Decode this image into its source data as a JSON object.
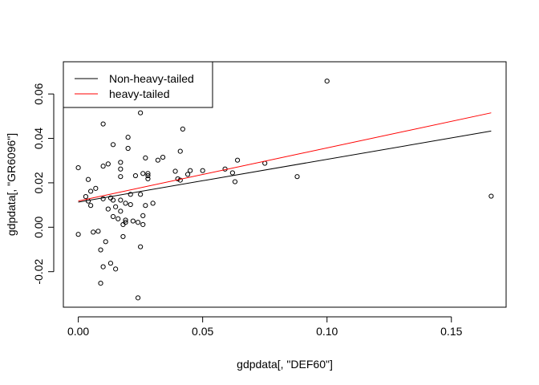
{
  "chart_data": {
    "type": "scatter",
    "xlabel": "gdpdata[, \"DEF60\"]",
    "ylabel": "gdpdata[, \"GR6096\"]",
    "xlim": [
      -0.006,
      0.172
    ],
    "ylim": [
      -0.036,
      0.0745
    ],
    "xticks": [
      0.0,
      0.05,
      0.1,
      0.15
    ],
    "xtick_labels": [
      "0.00",
      "0.05",
      "0.10",
      "0.15"
    ],
    "yticks": [
      -0.02,
      0.0,
      0.02,
      0.04,
      0.06
    ],
    "ytick_labels": [
      "-0.02",
      "0.00",
      "0.02",
      "0.04",
      "0.06"
    ],
    "grid": false,
    "legend_position": "top-left",
    "points": [
      [
        0.0,
        0.0268
      ],
      [
        0.0,
        -0.0032
      ],
      [
        0.003,
        0.0138
      ],
      [
        0.004,
        0.0118
      ],
      [
        0.004,
        0.0215
      ],
      [
        0.005,
        0.0098
      ],
      [
        0.005,
        0.0162
      ],
      [
        0.006,
        -0.0022
      ],
      [
        0.007,
        0.0175
      ],
      [
        0.008,
        -0.0018
      ],
      [
        0.009,
        -0.0102
      ],
      [
        0.009,
        -0.0252
      ],
      [
        0.01,
        0.0128
      ],
      [
        0.01,
        -0.0178
      ],
      [
        0.01,
        0.0465
      ],
      [
        0.01,
        0.0275
      ],
      [
        0.011,
        -0.0065
      ],
      [
        0.012,
        0.0285
      ],
      [
        0.012,
        0.0082
      ],
      [
        0.013,
        0.0132
      ],
      [
        0.013,
        -0.0162
      ],
      [
        0.014,
        0.0122
      ],
      [
        0.014,
        0.0048
      ],
      [
        0.014,
        0.0372
      ],
      [
        0.015,
        0.0092
      ],
      [
        0.015,
        -0.0188
      ],
      [
        0.016,
        0.0038
      ],
      [
        0.017,
        0.0292
      ],
      [
        0.017,
        0.0262
      ],
      [
        0.017,
        0.0228
      ],
      [
        0.017,
        0.0122
      ],
      [
        0.017,
        0.0072
      ],
      [
        0.018,
        -0.0042
      ],
      [
        0.018,
        0.0012
      ],
      [
        0.019,
        0.0032
      ],
      [
        0.019,
        0.0022
      ],
      [
        0.019,
        0.0108
      ],
      [
        0.02,
        0.0405
      ],
      [
        0.02,
        0.0355
      ],
      [
        0.021,
        0.0148
      ],
      [
        0.021,
        0.0102
      ],
      [
        0.022,
        0.0028
      ],
      [
        0.023,
        0.0232
      ],
      [
        0.024,
        0.0022
      ],
      [
        0.024,
        -0.0318
      ],
      [
        0.025,
        0.0515
      ],
      [
        0.025,
        0.0148
      ],
      [
        0.025,
        -0.0088
      ],
      [
        0.026,
        0.0052
      ],
      [
        0.026,
        0.0012
      ],
      [
        0.026,
        0.0242
      ],
      [
        0.027,
        0.0312
      ],
      [
        0.027,
        0.0098
      ],
      [
        0.028,
        0.0242
      ],
      [
        0.028,
        0.0232
      ],
      [
        0.028,
        0.0218
      ],
      [
        0.03,
        0.0108
      ],
      [
        0.032,
        0.0302
      ],
      [
        0.034,
        0.0315
      ],
      [
        0.039,
        0.0252
      ],
      [
        0.04,
        0.0218
      ],
      [
        0.041,
        0.0342
      ],
      [
        0.041,
        0.0212
      ],
      [
        0.042,
        0.0442
      ],
      [
        0.044,
        0.0238
      ],
      [
        0.045,
        0.0255
      ],
      [
        0.05,
        0.0255
      ],
      [
        0.059,
        0.0262
      ],
      [
        0.062,
        0.0245
      ],
      [
        0.063,
        0.0205
      ],
      [
        0.064,
        0.0302
      ],
      [
        0.075,
        0.0288
      ],
      [
        0.088,
        0.0228
      ],
      [
        0.1,
        0.0658
      ],
      [
        0.166,
        0.014
      ]
    ],
    "series": [
      {
        "name": "Non-heavy-tailed",
        "color": "#000000",
        "x": [
          0.0,
          0.166
        ],
        "y": [
          0.0113,
          0.0433
        ]
      },
      {
        "name": "heavy-tailed",
        "color": "#ff0000",
        "x": [
          0.0,
          0.166
        ],
        "y": [
          0.0118,
          0.0515
        ]
      }
    ]
  }
}
